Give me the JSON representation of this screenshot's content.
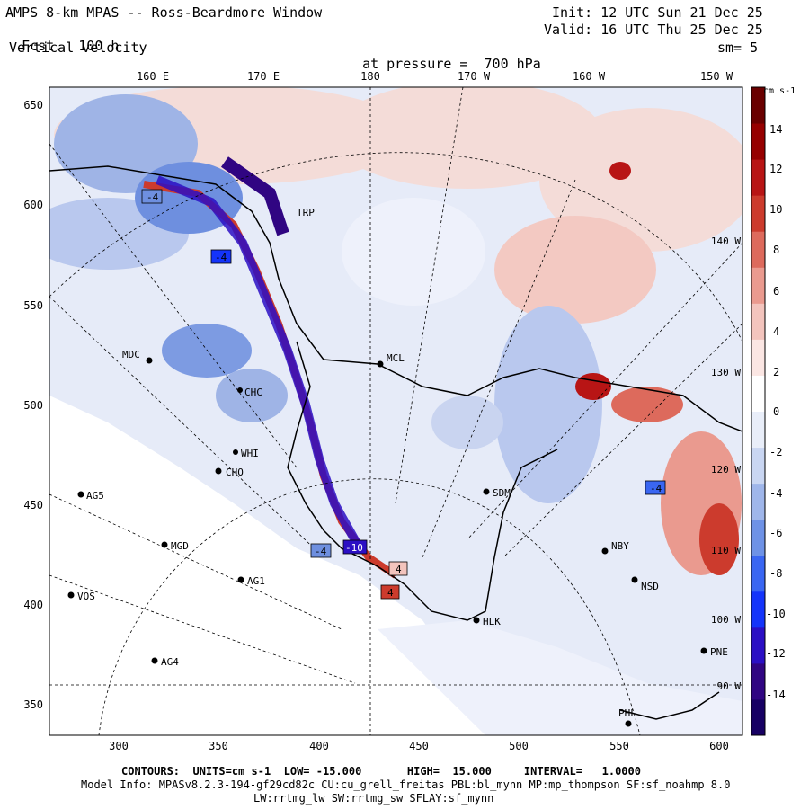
{
  "header": {
    "title": "AMPS 8-km MPAS -- Ross-Beardmore Window",
    "fcst_label": "Fcst.",
    "fcst_hours": "100 h",
    "field": "Vertical velocity",
    "init": "Init: 12 UTC Sun 21 Dec 25",
    "valid": "Valid: 16 UTC Thu 25 Dec 25",
    "level_label": "at pressure =",
    "level": "700 hPa",
    "smooth": "sm= 5"
  },
  "map": {
    "top_lon_labels": [
      "160 E",
      "170 E",
      "180",
      "170 W",
      "160 W",
      "150 W"
    ],
    "y_ticks": [
      "650",
      "600",
      "550",
      "500",
      "450",
      "400",
      "350"
    ],
    "x_ticks": [
      "300",
      "350",
      "400",
      "450",
      "500",
      "550",
      "600"
    ],
    "right_lon_labels": [
      "140 W",
      "130 W",
      "120 W",
      "110 W",
      "100 W",
      "90 W"
    ],
    "stations": [
      "MDC",
      "MCL",
      "CHC",
      "WHI",
      "CHO",
      "AG5",
      "MGD",
      "AG1",
      "VOS",
      "AG4",
      "SDM",
      "NBY",
      "NSD",
      "HLK",
      "PNE",
      "PHL",
      "TRP"
    ],
    "boxed_values": [
      "-4",
      "4",
      "4",
      "-4",
      "-4",
      "-4",
      "-10"
    ]
  },
  "colorbar": {
    "units": "cm s-1",
    "labels": [
      "14",
      "12",
      "10",
      "8",
      "6",
      "4",
      "2",
      "0",
      "-2",
      "-4",
      "-6",
      "-8",
      "-10",
      "-12",
      "-14"
    ],
    "colors": [
      "#170063",
      "#300582",
      "#2b0fc4",
      "#1434fa",
      "#3a66f2",
      "#6e92e6",
      "#9fb6ea",
      "#c9d6f2",
      "#e9eef9",
      "#ffffff",
      "#fbe6e3",
      "#f3c4bd",
      "#ea9a8f",
      "#dd6a5c",
      "#cc3b2d",
      "#b81515",
      "#960000",
      "#6a0000"
    ]
  },
  "footer": {
    "contours": "CONTOURS:  UNITS=cm s-1  LOW= -15.000       HIGH=  15.000     INTERVAL=   1.0000",
    "model_info": "Model Info: MPASv8.2.3-194-gf29cd82c CU:cu_grell_freitas PBL:bl_mynn MP:mp_thompson SF:sf_noahmp 8.0",
    "physics": "LW:rrtmg_lw SW:rrtmg_sw SFLAY:sf_mynn"
  }
}
